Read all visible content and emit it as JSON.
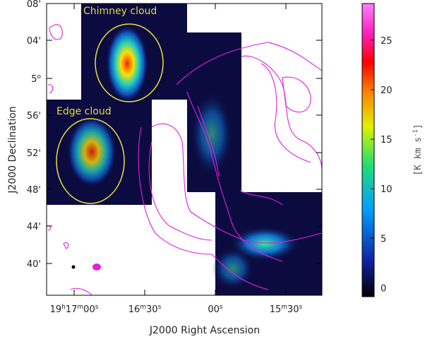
{
  "figure": {
    "annotations": [
      "Chimney cloud",
      "Edge cloud"
    ],
    "x_axis": {
      "label": "J2000 Right Ascension",
      "ticks": [
        [
          "19",
          "h",
          "17",
          "m",
          "00",
          "s"
        ],
        [
          "16",
          "m",
          "30",
          "s"
        ],
        [
          "00",
          "s"
        ],
        [
          "15",
          "m",
          "30",
          "s"
        ]
      ]
    },
    "y_axis": {
      "label": "J2000 Declination",
      "ticks": [
        [
          "08'"
        ],
        [
          "04'"
        ],
        [
          "5",
          "o"
        ],
        [
          "56'"
        ],
        [
          "52'"
        ],
        [
          "48'"
        ],
        [
          "44'"
        ],
        [
          "40'"
        ]
      ]
    },
    "colorbar": {
      "label": [
        "[K km s",
        "-1",
        "]"
      ],
      "lim": [
        -0.9,
        28.7
      ],
      "ticks": [
        0,
        5,
        10,
        15,
        20,
        25
      ]
    }
  }
}
